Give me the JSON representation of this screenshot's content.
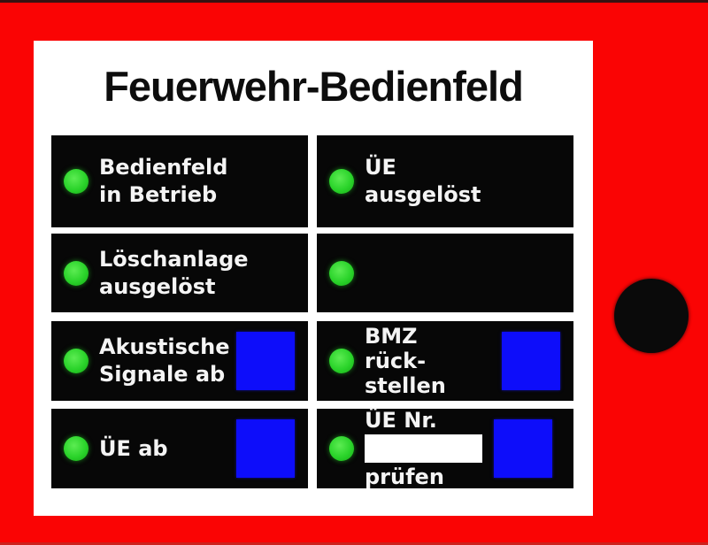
{
  "title": "Feuerwehr-Bedienfeld",
  "colors": {
    "background_red": "#fa0404",
    "panel_white": "#ffffff",
    "tile_black": "#070707",
    "led_green": "#2ad32a",
    "button_blue": "#0d0dfa",
    "label_white": "#f4f4f4",
    "title_black": "#0d0d0d"
  },
  "tiles": [
    {
      "name": "bedienfeld-in-betrieb",
      "line1": "Bedienfeld",
      "line2": "in Betrieb"
    },
    {
      "name": "ue-ausgeloest",
      "line1": "ÜE",
      "line2": "ausgelöst"
    },
    {
      "name": "loeschanlage-ausgeloest",
      "line1": "Löschanlage",
      "line2": "ausgelöst"
    },
    {
      "name": "blank-indicator"
    },
    {
      "name": "akustische-signale-ab",
      "line1": "Akustische",
      "line2": "Signale ab"
    },
    {
      "name": "bmz-rueckstellen",
      "line1": "BMZ",
      "line2": "rück-",
      "line3": "stellen"
    },
    {
      "name": "ue-ab",
      "line1": "ÜE ab"
    },
    {
      "name": "ue-nr-pruefen",
      "line1": "ÜE Nr.",
      "line3": "prüfen",
      "field_value": ""
    }
  ]
}
